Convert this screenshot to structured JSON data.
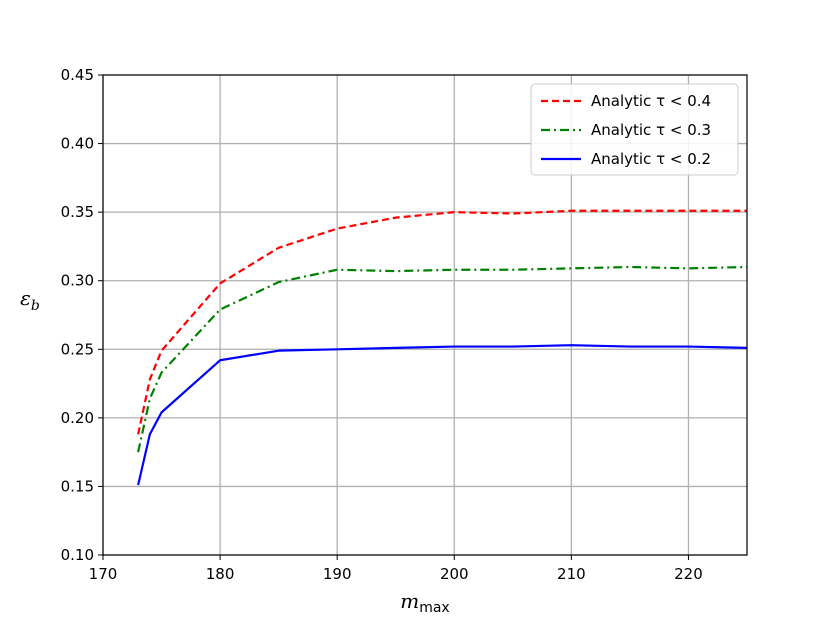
{
  "chart_data": {
    "type": "line",
    "xlabel": "m",
    "xlabel_sub": "max",
    "ylabel": "ε",
    "ylabel_sub": "b",
    "xlim": [
      170,
      225
    ],
    "ylim": [
      0.1,
      0.45
    ],
    "xticks": [
      170,
      180,
      190,
      200,
      210,
      220
    ],
    "yticks": [
      0.1,
      0.15,
      0.2,
      0.25,
      0.3,
      0.35,
      0.4,
      0.45
    ],
    "grid": true,
    "legend_position": "top-right",
    "series": [
      {
        "name": "Analytic τ < 0.4",
        "color": "#ff0000",
        "dash": "dashed",
        "x": [
          173,
          174,
          175,
          180,
          185,
          190,
          195,
          200,
          205,
          210,
          215,
          220,
          225
        ],
        "y": [
          0.188,
          0.228,
          0.249,
          0.298,
          0.324,
          0.338,
          0.346,
          0.35,
          0.349,
          0.351,
          0.351,
          0.351,
          0.351
        ]
      },
      {
        "name": "Analytic τ < 0.3",
        "color": "#008000",
        "dash": "dashdot",
        "x": [
          173,
          174,
          175,
          180,
          185,
          190,
          195,
          200,
          205,
          210,
          215,
          220,
          225
        ],
        "y": [
          0.175,
          0.214,
          0.233,
          0.279,
          0.299,
          0.308,
          0.307,
          0.308,
          0.308,
          0.309,
          0.31,
          0.309,
          0.31
        ]
      },
      {
        "name": "Analytic τ < 0.2",
        "color": "#0000ff",
        "dash": "solid",
        "x": [
          173,
          174,
          175,
          180,
          185,
          190,
          195,
          200,
          205,
          210,
          215,
          220,
          225
        ],
        "y": [
          0.151,
          0.188,
          0.204,
          0.242,
          0.249,
          0.25,
          0.251,
          0.252,
          0.252,
          0.253,
          0.252,
          0.252,
          0.251
        ]
      }
    ]
  }
}
